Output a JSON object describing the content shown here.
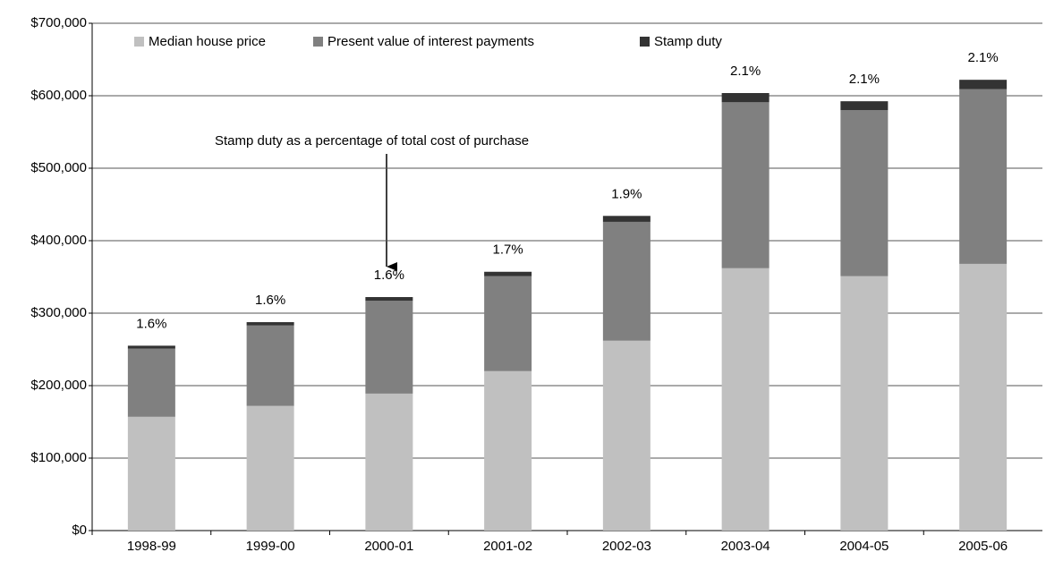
{
  "chart_data": {
    "type": "stacked_bar",
    "categories": [
      "1998-99",
      "1999-00",
      "2000-01",
      "2001-02",
      "2002-03",
      "2003-04",
      "2004-05",
      "2005-06"
    ],
    "series": [
      {
        "name": "Median house price",
        "color": "#c0c0c0",
        "values": [
          157000,
          172000,
          189000,
          220000,
          262000,
          362000,
          351000,
          368000
        ]
      },
      {
        "name": "Present value of interest payments",
        "color": "#808080",
        "values": [
          94000,
          111000,
          128000,
          131000,
          164000,
          229000,
          229000,
          241000
        ]
      },
      {
        "name": "Stamp duty",
        "color": "#333333",
        "values": [
          4100,
          4600,
          5200,
          6100,
          8200,
          12700,
          12400,
          13000
        ]
      }
    ],
    "percent_labels": [
      "1.6%",
      "1.6%",
      "1.6%",
      "1.7%",
      "1.9%",
      "2.1%",
      "2.1%",
      "2.1%"
    ],
    "annotation": "Stamp duty as a percentage of total cost of purchase",
    "ylim": [
      0,
      700000
    ],
    "yticks": [
      {
        "value": 0,
        "label": "$0"
      },
      {
        "value": 100000,
        "label": "$100,000"
      },
      {
        "value": 200000,
        "label": "$200,000"
      },
      {
        "value": 300000,
        "label": "$300,000"
      },
      {
        "value": 400000,
        "label": "$400,000"
      },
      {
        "value": 500000,
        "label": "$500,000"
      },
      {
        "value": 600000,
        "label": "$600,000"
      },
      {
        "value": 700000,
        "label": "$700,000"
      }
    ],
    "grid": true,
    "legend": "top-left"
  }
}
